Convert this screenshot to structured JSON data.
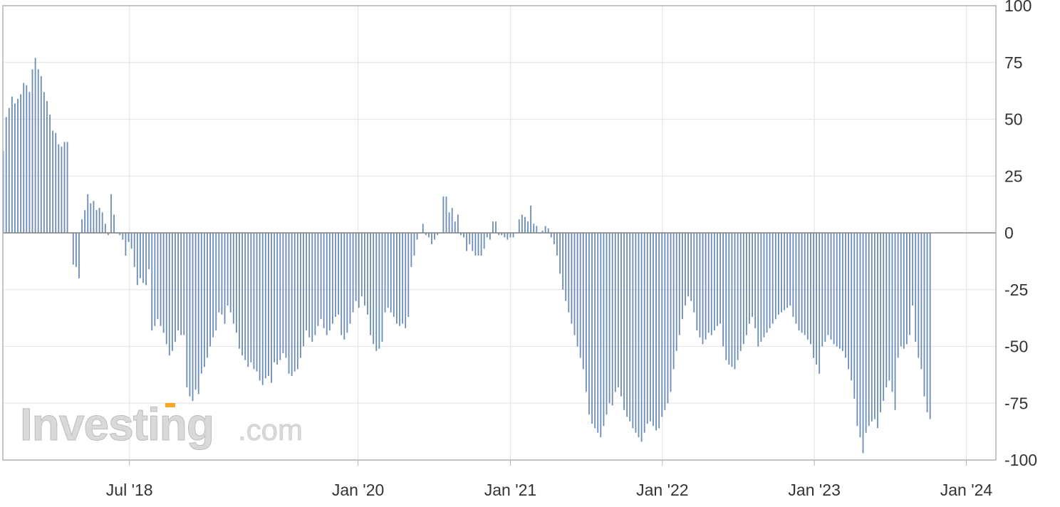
{
  "watermark": {
    "brand": "Investing",
    "domain": ".com",
    "accent_color": "#f5a623"
  },
  "colors": {
    "bar": "#6a8db6",
    "grid": "#e6e6e6",
    "axis": "#b3b3b3",
    "zero_line": "#7f7f7f"
  },
  "chart_data": {
    "type": "bar",
    "title": "",
    "xlabel": "",
    "ylabel": "",
    "ylim": [
      -100,
      100
    ],
    "y_ticks": [
      "100",
      "75",
      "50",
      "25",
      "0",
      "-25",
      "-50",
      "-75",
      "-100"
    ],
    "y_axis_position": "right",
    "grid": true,
    "x_ticks": [
      {
        "label": "Jul '18",
        "date": "2018-07-01"
      },
      {
        "label": "Jan '20",
        "date": "2020-01-01"
      },
      {
        "label": "Jan '21",
        "date": "2021-01-01"
      },
      {
        "label": "Jan '22",
        "date": "2022-01-01"
      },
      {
        "label": "Jan '23",
        "date": "2023-01-01"
      },
      {
        "label": "Jan '24",
        "date": "2024-01-01"
      }
    ],
    "x_start": "2017-08-31",
    "x_end": "2024-03-12",
    "series": [
      {
        "frequency": "weekly",
        "first_date": "2017-09-01",
        "values": [
          36,
          51,
          55,
          60,
          57,
          59,
          61,
          66,
          65,
          62,
          72,
          77,
          72,
          69,
          62,
          58,
          52,
          45,
          44,
          39,
          38,
          40,
          40,
          0,
          -14,
          -15,
          -20,
          6,
          10,
          17,
          13,
          14,
          10,
          11,
          9,
          4,
          -1,
          17,
          8,
          0,
          -1,
          -3,
          -10,
          -4,
          -7,
          -15,
          -23,
          -20,
          -22,
          -23,
          -16,
          -43,
          -41,
          -38,
          -41,
          -44,
          -49,
          -54,
          -52,
          -48,
          -43,
          -45,
          -45,
          -68,
          -72,
          -74,
          -69,
          -71,
          -62,
          -59,
          -55,
          -50,
          -46,
          -43,
          -35,
          -36,
          -40,
          -32,
          -35,
          -40,
          -44,
          -51,
          -54,
          -56,
          -59,
          -57,
          -60,
          -61,
          -65,
          -67,
          -64,
          -63,
          -66,
          -57,
          -58,
          -56,
          -53,
          -55,
          -62,
          -63,
          -61,
          -60,
          -55,
          -50,
          -43,
          -46,
          -48,
          -45,
          -41,
          -38,
          -42,
          -45,
          -43,
          -40,
          -37,
          -36,
          -45,
          -47,
          -44,
          -40,
          -35,
          -30,
          -33,
          -28,
          -32,
          -36,
          -45,
          -49,
          -52,
          -51,
          -48,
          -35,
          -33,
          -35,
          -37,
          -40,
          -41,
          -40,
          -42,
          -37,
          -15,
          -10,
          -3,
          0,
          4,
          -1,
          -2,
          -5,
          -3,
          -1,
          0,
          16,
          16,
          9,
          11,
          5,
          8,
          -1,
          -2,
          -8,
          -5,
          -8,
          -10,
          -10,
          -10,
          -7,
          -2,
          -3,
          5,
          5,
          -1,
          -1,
          -2,
          -3,
          -2,
          -2,
          0,
          6,
          8,
          7,
          5,
          12,
          4,
          3,
          0,
          1,
          3,
          2,
          -2,
          -5,
          -10,
          -18,
          -25,
          -30,
          -35,
          -40,
          -45,
          -50,
          -55,
          -60,
          -70,
          -80,
          -84,
          -86,
          -88,
          -90,
          -85,
          -80,
          -75,
          -76,
          -70,
          -68,
          -72,
          -78,
          -81,
          -83,
          -86,
          -88,
          -90,
          -92,
          -88,
          -84,
          -83,
          -85,
          -87,
          -86,
          -81,
          -78,
          -75,
          -70,
          -60,
          -52,
          -45,
          -38,
          -32,
          -28,
          -30,
          -35,
          -43,
          -46,
          -49,
          -47,
          -44,
          -45,
          -43,
          -41,
          -40,
          -50,
          -56,
          -58,
          -59,
          -60,
          -56,
          -52,
          -49,
          -45,
          -40,
          -37,
          -42,
          -50,
          -48,
          -46,
          -44,
          -42,
          -40,
          -38,
          -36,
          -35,
          -34,
          -33,
          -32,
          -37,
          -40,
          -43,
          -44,
          -45,
          -47,
          -49,
          -55,
          -58,
          -62,
          -50,
          -48,
          -45,
          -47,
          -49,
          -50,
          -51,
          -52,
          -55,
          -60,
          -65,
          -73,
          -85,
          -90,
          -97,
          -88,
          -85,
          -83,
          -82,
          -86,
          -79,
          -74,
          -68,
          -65,
          -70,
          -78,
          -55,
          -50,
          -51,
          -49,
          -45,
          -32,
          -48,
          -55,
          -60,
          -72,
          -79,
          -82
        ]
      }
    ]
  }
}
